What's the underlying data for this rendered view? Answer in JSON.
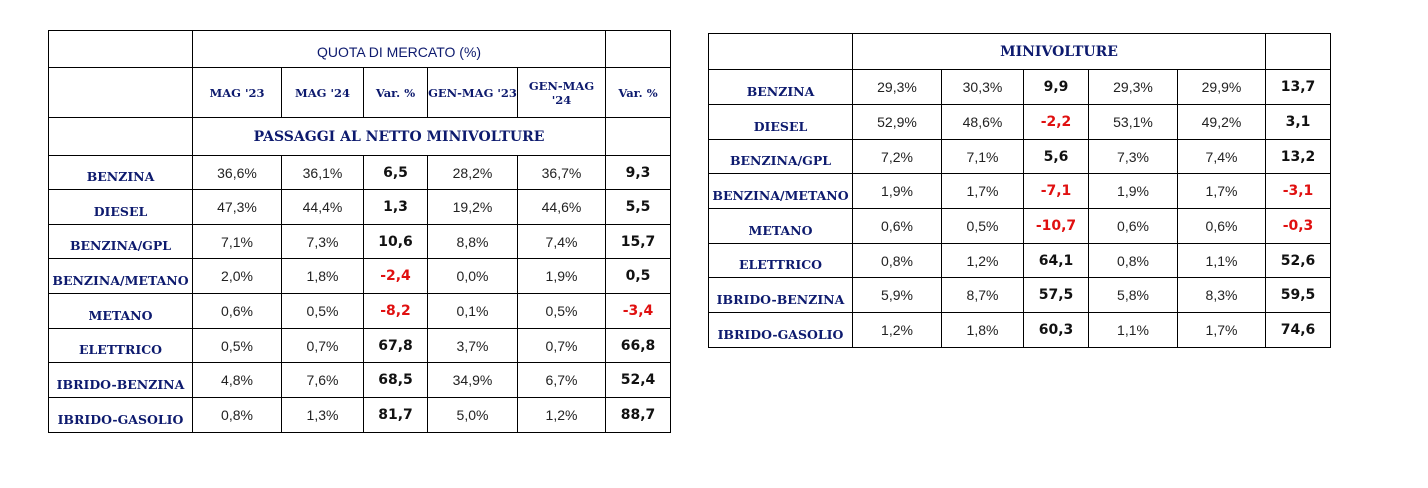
{
  "left_table": {
    "quota_title": "QUOTA DI MERCATO (%)",
    "columns": [
      "MAG '23",
      "MAG '24",
      "Var. %",
      "GEN-MAG '23",
      "GEN-MAG '24",
      "Var. %"
    ],
    "subtitle": "PASSAGGI AL NETTO MINIVOLTURE",
    "rows": [
      {
        "label": "BENZINA",
        "v1": "36,6%",
        "v2": "36,1%",
        "var1": "6,5",
        "v3": "28,2%",
        "v4": "36,7%",
        "var2": "9,3"
      },
      {
        "label": "DIESEL",
        "v1": "47,3%",
        "v2": "44,4%",
        "var1": "1,3",
        "v3": "19,2%",
        "v4": "44,6%",
        "var2": "5,5"
      },
      {
        "label": "BENZINA/GPL",
        "v1": "7,1%",
        "v2": "7,3%",
        "var1": "10,6",
        "v3": "8,8%",
        "v4": "7,4%",
        "var2": "15,7"
      },
      {
        "label": "BENZINA/METANO",
        "v1": "2,0%",
        "v2": "1,8%",
        "var1": "-2,4",
        "v3": "0,0%",
        "v4": "1,9%",
        "var2": "0,5"
      },
      {
        "label": "METANO",
        "v1": "0,6%",
        "v2": "0,5%",
        "var1": "-8,2",
        "v3": "0,1%",
        "v4": "0,5%",
        "var2": "-3,4"
      },
      {
        "label": "ELETTRICO",
        "v1": "0,5%",
        "v2": "0,7%",
        "var1": "67,8",
        "v3": "3,7%",
        "v4": "0,7%",
        "var2": "66,8"
      },
      {
        "label": "IBRIDO-BENZINA",
        "v1": "4,8%",
        "v2": "7,6%",
        "var1": "68,5",
        "v3": "34,9%",
        "v4": "6,7%",
        "var2": "52,4"
      },
      {
        "label": "IBRIDO-GASOLIO",
        "v1": "0,8%",
        "v2": "1,3%",
        "var1": "81,7",
        "v3": "5,0%",
        "v4": "1,2%",
        "var2": "88,7"
      }
    ]
  },
  "right_table": {
    "title": "MINIVOLTURE",
    "rows": [
      {
        "label": "BENZINA",
        "v1": "29,3%",
        "v2": "30,3%",
        "var1": "9,9",
        "v3": "29,3%",
        "v4": "29,9%",
        "var2": "13,7"
      },
      {
        "label": "DIESEL",
        "v1": "52,9%",
        "v2": "48,6%",
        "var1": "-2,2",
        "v3": "53,1%",
        "v4": "49,2%",
        "var2": "3,1"
      },
      {
        "label": "BENZINA/GPL",
        "v1": "7,2%",
        "v2": "7,1%",
        "var1": "5,6",
        "v3": "7,3%",
        "v4": "7,4%",
        "var2": "13,2"
      },
      {
        "label": "BENZINA/METANO",
        "v1": "1,9%",
        "v2": "1,7%",
        "var1": "-7,1",
        "v3": "1,9%",
        "v4": "1,7%",
        "var2": "-3,1"
      },
      {
        "label": "METANO",
        "v1": "0,6%",
        "v2": "0,5%",
        "var1": "-10,7",
        "v3": "0,6%",
        "v4": "0,6%",
        "var2": "-0,3"
      },
      {
        "label": "ELETTRICO",
        "v1": "0,8%",
        "v2": "1,2%",
        "var1": "64,1",
        "v3": "0,8%",
        "v4": "1,1%",
        "var2": "52,6"
      },
      {
        "label": "IBRIDO-BENZINA",
        "v1": "5,9%",
        "v2": "8,7%",
        "var1": "57,5",
        "v3": "5,8%",
        "v4": "8,3%",
        "var2": "59,5"
      },
      {
        "label": "IBRIDO-GASOLIO",
        "v1": "1,2%",
        "v2": "1,8%",
        "var1": "60,3",
        "v3": "1,1%",
        "v4": "1,7%",
        "var2": "74,6"
      }
    ]
  },
  "colors": {
    "label_navy": "#0d1a6e",
    "negative_red": "#e01010",
    "border": "#000000"
  }
}
